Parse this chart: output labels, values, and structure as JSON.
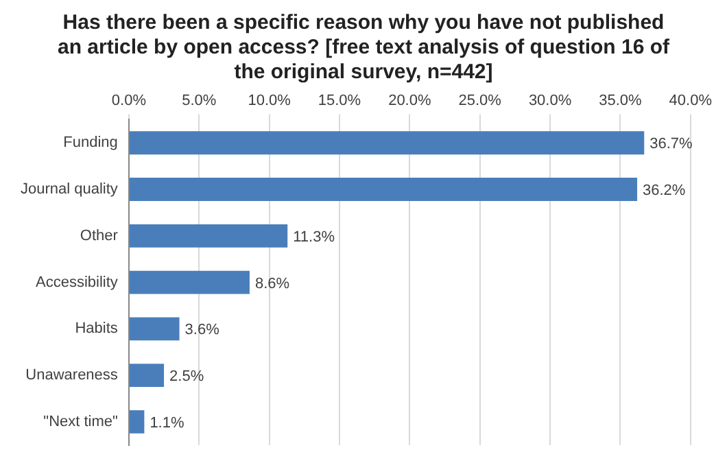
{
  "chart_data": {
    "type": "bar",
    "orientation": "horizontal",
    "title": "Has there been a specific reason why you have not published an article by open access? [free text analysis of question 16 of the original survey, n=442]",
    "categories": [
      "Funding",
      "Journal quality",
      "Other",
      "Accessibility",
      "Habits",
      "Unawareness",
      "\"Next time\""
    ],
    "values": [
      36.7,
      36.2,
      11.3,
      8.6,
      3.6,
      2.5,
      1.1
    ],
    "value_labels": [
      "36.7%",
      "36.2%",
      "11.3%",
      "8.6%",
      "3.6%",
      "2.5%",
      "1.1%"
    ],
    "color": "#4a7ebb",
    "xlim": [
      0,
      40
    ],
    "xticks": [
      {
        "value": 0,
        "label": "0.0%"
      },
      {
        "value": 5,
        "label": "5.0%"
      },
      {
        "value": 10,
        "label": "10.0%"
      },
      {
        "value": 15,
        "label": "15.0%"
      },
      {
        "value": 20,
        "label": "20.0%"
      },
      {
        "value": 25,
        "label": "25.0%"
      },
      {
        "value": 30,
        "label": "30.0%"
      },
      {
        "value": 35,
        "label": "35.0%"
      },
      {
        "value": 40,
        "label": "40.0%"
      }
    ],
    "grid": "x"
  }
}
